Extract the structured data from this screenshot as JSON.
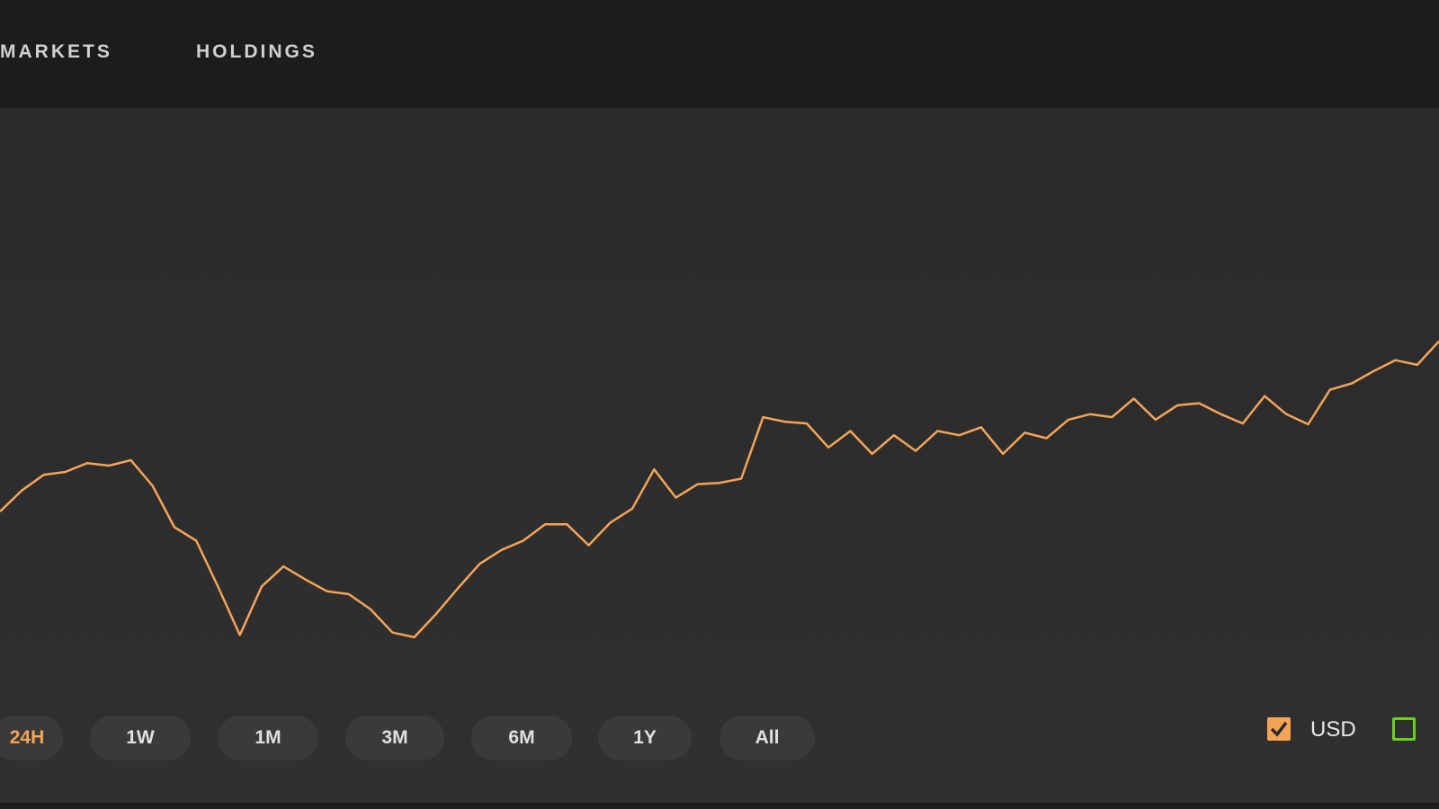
{
  "nav": [
    "MARKETS",
    "HOLDINGS"
  ],
  "ranges": [
    "24H",
    "1W",
    "1M",
    "3M",
    "6M",
    "1Y",
    "All"
  ],
  "chart_data": {
    "type": "line",
    "ylim": [
      0,
      100
    ],
    "series": [
      {
        "name": "USD",
        "color": "#f4a457",
        "values": [
          43.9,
          48.9,
          52.6,
          53.3,
          55.4,
          54.8,
          56.1,
          50.0,
          40.2,
          37.0,
          26.1,
          14.6,
          26.1,
          30.9,
          27.8,
          25.0,
          24.3,
          20.7,
          15.2,
          14.1,
          19.6,
          25.7,
          31.5,
          34.8,
          37.0,
          40.9,
          40.9,
          35.9,
          41.3,
          44.6,
          53.9,
          47.2,
          50.4,
          50.7,
          51.7,
          66.3,
          65.2,
          64.8,
          59.1,
          63.0,
          57.6,
          62.0,
          58.3,
          63.0,
          62.0,
          63.9,
          57.6,
          62.6,
          61.3,
          65.7,
          67.0,
          66.3,
          70.7,
          65.7,
          69.1,
          69.6,
          67.0,
          64.8,
          71.3,
          67.0,
          64.6,
          72.8,
          74.3,
          77.2,
          79.8,
          78.7,
          84.3
        ]
      }
    ]
  }
}
